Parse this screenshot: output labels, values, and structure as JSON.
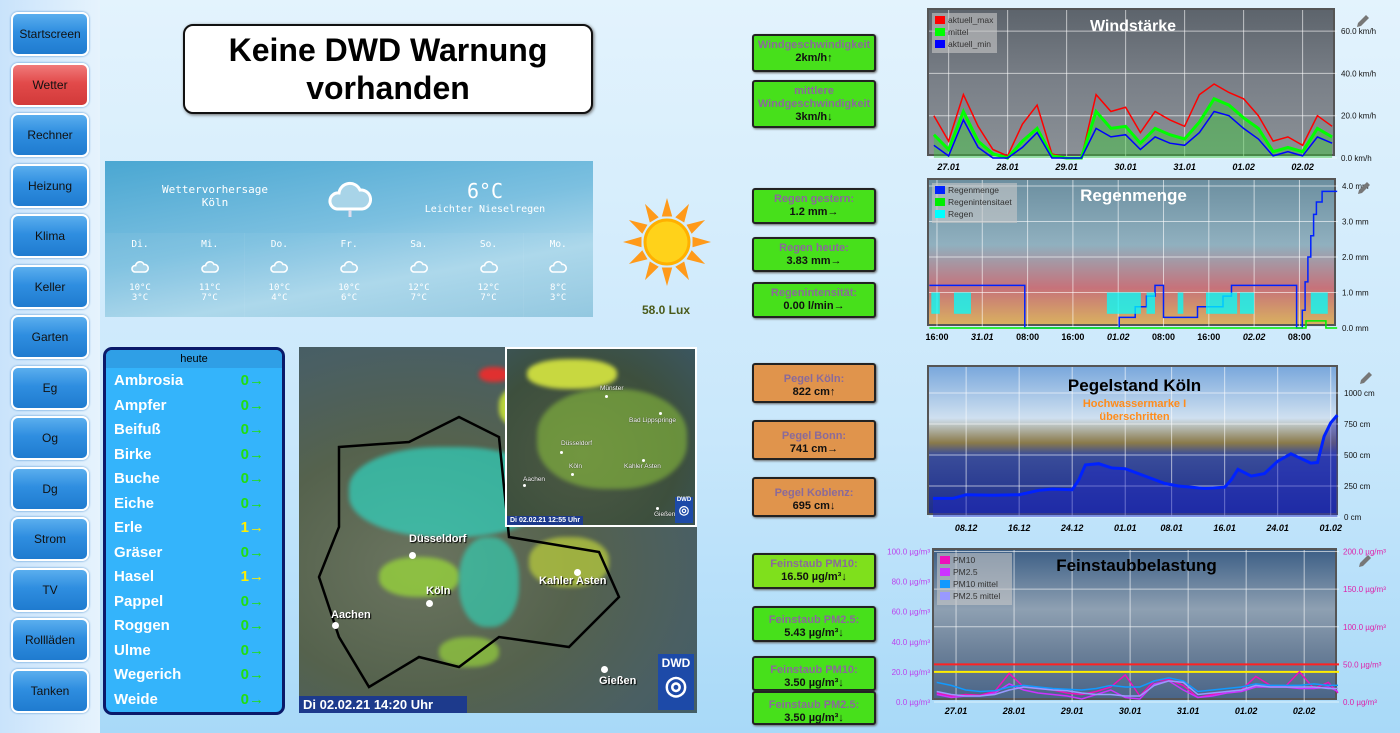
{
  "nav": {
    "items": [
      {
        "label": "Startscreen"
      },
      {
        "label": "Wetter",
        "active": true
      },
      {
        "label": "Rechner"
      },
      {
        "label": "Heizung"
      },
      {
        "label": "Klima"
      },
      {
        "label": "Keller"
      },
      {
        "label": "Garten"
      },
      {
        "label": "Eg"
      },
      {
        "label": "Og"
      },
      {
        "label": "Dg"
      },
      {
        "label": "Strom"
      },
      {
        "label": "TV"
      },
      {
        "label": "Rollläden"
      },
      {
        "label": "Tanken"
      }
    ]
  },
  "warning": {
    "line1": "Keine DWD Warnung",
    "line2": "vorhanden"
  },
  "forecast": {
    "title": "Wettervorhersage",
    "city": "Köln",
    "temp": "6°C",
    "condition": "Leichter Nieselregen",
    "icon": "cloud-drizzle-icon",
    "days": [
      {
        "name": "Di.",
        "hi": "10°C",
        "lo": "3°C"
      },
      {
        "name": "Mi.",
        "hi": "11°C",
        "lo": "7°C"
      },
      {
        "name": "Do.",
        "hi": "10°C",
        "lo": "4°C"
      },
      {
        "name": "Fr.",
        "hi": "10°C",
        "lo": "6°C"
      },
      {
        "name": "Sa.",
        "hi": "12°C",
        "lo": "7°C"
      },
      {
        "name": "So.",
        "hi": "12°C",
        "lo": "7°C"
      },
      {
        "name": "Mo.",
        "hi": "8°C",
        "lo": "3°C"
      }
    ]
  },
  "sun": {
    "icon": "sun-icon",
    "lux": "58.0 Lux"
  },
  "values": {
    "wind": [
      {
        "label": "Windgeschwindigkeit",
        "value": "2km/h",
        "trend": "↑"
      },
      {
        "label": "mittlere Windgeschwindigkeit",
        "value": "3km/h",
        "trend": "↓"
      }
    ],
    "rain": [
      {
        "label": "Regen gestern:",
        "value": "1.2 mm",
        "trend": "→"
      },
      {
        "label": "Regen heute:",
        "value": "3.83 mm",
        "trend": "→"
      },
      {
        "label": "Regenintensität:",
        "value": "0.00 l/min",
        "trend": "→"
      }
    ],
    "level": [
      {
        "label": "Pegel Köln:",
        "value": "822 cm",
        "trend": "↑"
      },
      {
        "label": "Pegel Bonn:",
        "value": "741 cm",
        "trend": "→"
      },
      {
        "label": "Pegel Koblenz:",
        "value": "695 cm",
        "trend": "↓"
      }
    ],
    "dust": [
      {
        "label": "Feinstaub PM10:",
        "value": "16.50 µg/m³",
        "trend": "↓"
      },
      {
        "label": "Feinstaub PM2.5:",
        "value": "5.43 µg/m³",
        "trend": "↓"
      },
      {
        "label": "Feinstaub PM10:",
        "value": "3.50 µg/m³",
        "trend": "↓"
      },
      {
        "label": "Feinstaub PM2.5:",
        "value": "3.50 µg/m³",
        "trend": "↓"
      }
    ],
    "colors": {
      "green": "#47e01b",
      "orange": "#e0944c",
      "lime": "#7fe01c"
    }
  },
  "pollen": {
    "header": "heute",
    "items": [
      {
        "name": "Ambrosia",
        "value": "0",
        "trend": "→"
      },
      {
        "name": "Ampfer",
        "value": "0",
        "trend": "→"
      },
      {
        "name": "Beifuß",
        "value": "0",
        "trend": "→"
      },
      {
        "name": "Birke",
        "value": "0",
        "trend": "→"
      },
      {
        "name": "Buche",
        "value": "0",
        "trend": "→"
      },
      {
        "name": "Eiche",
        "value": "0",
        "trend": "→"
      },
      {
        "name": "Erle",
        "value": "1",
        "trend": "→"
      },
      {
        "name": "Gräser",
        "value": "0",
        "trend": "→"
      },
      {
        "name": "Hasel",
        "value": "1",
        "trend": "→"
      },
      {
        "name": "Pappel",
        "value": "0",
        "trend": "→"
      },
      {
        "name": "Roggen",
        "value": "0",
        "trend": "→"
      },
      {
        "name": "Ulme",
        "value": "0",
        "trend": "→"
      },
      {
        "name": "Wegerich",
        "value": "0",
        "trend": "→"
      },
      {
        "name": "Weide",
        "value": "0",
        "trend": "→"
      }
    ],
    "colors": {
      "0": "#22dd11",
      "1": "#ffee00"
    }
  },
  "radar": {
    "timestamp": "Di 02.02.21  14:20 Uhr",
    "inset_timestamp": "Di 02.02.21  12:55 Uhr",
    "logo": "DWD",
    "cities": [
      "Düsseldorf",
      "Köln",
      "Aachen",
      "Kahler Asten",
      "Gießen"
    ],
    "inset_cities": [
      "Münster",
      "Bad Lippspringe",
      "Düsseldorf",
      "Köln",
      "Aachen",
      "Kahler Asten",
      "Gießen"
    ]
  },
  "chart_data": [
    {
      "type": "area",
      "title": "Windstärke",
      "ylim": [
        0,
        70
      ],
      "y_unit": "km/h",
      "y_ticks": [
        "0.0 km/h",
        "20.0 km/h",
        "40.0 km/h",
        "60.0 km/h"
      ],
      "y_tick_values": [
        0,
        20,
        40,
        60
      ],
      "x_ticks": [
        "27.01",
        "28.01",
        "29.01",
        "30.01",
        "31.01",
        "01.02",
        "02.02"
      ],
      "x": [
        "26.01 18:00",
        "27.01 00:00",
        "27.01 06:00",
        "27.01 12:00",
        "27.01 18:00",
        "28.01 00:00",
        "28.01 06:00",
        "28.01 12:00",
        "28.01 18:00",
        "29.01 00:00",
        "29.01 06:00",
        "29.01 12:00",
        "29.01 18:00",
        "30.01 00:00",
        "30.01 06:00",
        "30.01 12:00",
        "30.01 18:00",
        "31.01 00:00",
        "31.01 06:00",
        "31.01 12:00",
        "31.01 18:00",
        "01.02 00:00",
        "01.02 06:00",
        "01.02 12:00",
        "01.02 18:00",
        "02.02 00:00",
        "02.02 06:00",
        "02.02 12:00"
      ],
      "series": [
        {
          "name": "aktuell_max",
          "color": "#ff0000",
          "values": [
            20,
            8,
            30,
            15,
            4,
            1,
            16,
            25,
            2,
            0,
            0,
            30,
            22,
            24,
            12,
            22,
            18,
            15,
            30,
            35,
            31,
            28,
            20,
            8,
            10,
            6,
            20,
            15
          ]
        },
        {
          "name": "mittel",
          "color": "#00ff00",
          "values": [
            11,
            4,
            22,
            8,
            2,
            0,
            8,
            14,
            1,
            0,
            0,
            22,
            14,
            15,
            7,
            14,
            11,
            9,
            17,
            28,
            25,
            19,
            14,
            3,
            5,
            3,
            14,
            10
          ]
        },
        {
          "name": "aktuell_min",
          "color": "#0000ff",
          "values": [
            6,
            1,
            18,
            5,
            0,
            0,
            5,
            12,
            0,
            0,
            0,
            14,
            10,
            11,
            4,
            10,
            7,
            6,
            12,
            22,
            20,
            14,
            9,
            1,
            3,
            1,
            10,
            7
          ]
        }
      ]
    },
    {
      "type": "line",
      "title": "Regenmenge",
      "ylim": [
        0,
        4.17
      ],
      "y_unit": "mm",
      "y_ticks": [
        "0.0 mm",
        "1.0 mm",
        "2.0 mm",
        "3.0 mm",
        "4.0 mm"
      ],
      "y_tick_values": [
        0,
        1,
        2,
        3,
        4
      ],
      "x_ticks": [
        {
          "label": "16:00",
          "at": "30.01 16:00"
        },
        {
          "label": "31.01",
          "at": "31.01 00:00"
        },
        {
          "label": "08:00",
          "at": "31.01 08:00"
        },
        {
          "label": "16:00",
          "at": "31.01 16:00"
        },
        {
          "label": "01.02",
          "at": "01.02 00:00"
        },
        {
          "label": "08:00",
          "at": "01.02 08:00"
        },
        {
          "label": "16:00",
          "at": "01.02 16:00"
        },
        {
          "label": "02.02",
          "at": "02.02 00:00"
        },
        {
          "label": "08:00",
          "at": "02.02 08:00"
        }
      ],
      "series": [
        {
          "name": "Regenmenge",
          "color": "#0022ff",
          "step": true,
          "x": [
            "30.01 14:40",
            "31.01 07:20",
            "31.01 07:30",
            "01.02 00:10",
            "01.02 03:00",
            "01.02 05:00",
            "01.02 06:30",
            "01.02 08:00",
            "01.02 14:00",
            "01.02 18:30",
            "01.02 20:00",
            "02.02 07:30",
            "02.02 08:30",
            "02.02 09:00",
            "02.02 09:30",
            "02.02 10:00",
            "02.02 10:30",
            "02.02 11:00",
            "02.02 12:00",
            "02.02 14:40"
          ],
          "values": [
            1.2,
            1.2,
            0,
            0.3,
            0.6,
            0.9,
            1.2,
            0.3,
            0.6,
            0.9,
            1.2,
            0,
            0.5,
            1.3,
            2.0,
            2.6,
            3.2,
            3.55,
            3.85,
            3.85
          ]
        },
        {
          "name": "Regenintensitaet",
          "color": "#00ee00",
          "step": true,
          "x": [
            "30.01 14:40",
            "02.02 09:00",
            "02.02 09:10",
            "02.02 12:30",
            "02.02 12:40",
            "02.02 14:40"
          ],
          "values": [
            0,
            0,
            0.2,
            0.2,
            0,
            0
          ]
        },
        {
          "name": "Regen",
          "color": "#00ffff",
          "periods": [
            [
              "30.01 15:00",
              "30.01 16:30"
            ],
            [
              "30.01 19:00",
              "30.01 22:00"
            ],
            [
              "31.01 22:00",
              "01.02 04:00"
            ],
            [
              "01.02 05:00",
              "01.02 06:30"
            ],
            [
              "01.02 10:30",
              "01.02 11:30"
            ],
            [
              "01.02 15:30",
              "01.02 21:00"
            ],
            [
              "01.02 21:30",
              "02.02 00:00"
            ],
            [
              "02.02 10:00",
              "02.02 13:00"
            ]
          ]
        }
      ]
    },
    {
      "type": "area",
      "title": "Pegelstand Köln",
      "subtitle": "Hochwassermarke I überschritten",
      "ylim": [
        0,
        1210
      ],
      "y_unit": "cm",
      "y_ticks": [
        "0 cm",
        "250 cm",
        "500 cm",
        "750 cm",
        "1000 cm"
      ],
      "y_tick_values": [
        0,
        250,
        500,
        750,
        1000
      ],
      "x_ticks": [
        "08.12",
        "16.12",
        "24.12",
        "01.01",
        "08.01",
        "16.01",
        "24.01",
        "01.02"
      ],
      "x": [
        "03.12",
        "06.12",
        "08.12",
        "12.12",
        "16.12",
        "19.12",
        "21.12",
        "24.12",
        "25.12",
        "26.12",
        "28.12",
        "30.12",
        "01.01",
        "04.01",
        "07.01",
        "09.01",
        "13.01",
        "16.01",
        "17.01",
        "18.01",
        "20.01",
        "22.01",
        "24.01",
        "26.01",
        "28.01",
        "29.01",
        "30.01",
        "31.01",
        "01.02",
        "02.02"
      ],
      "series": [
        {
          "name": "Pegel Köln",
          "color": "#0022ff",
          "values": [
            150,
            150,
            180,
            175,
            180,
            215,
            225,
            220,
            300,
            420,
            430,
            395,
            390,
            330,
            270,
            250,
            230,
            240,
            300,
            385,
            330,
            350,
            450,
            510,
            460,
            435,
            440,
            650,
            760,
            822
          ]
        }
      ]
    },
    {
      "type": "line",
      "title": "Feinstaubbelastung",
      "ylim_left": [
        0,
        101
      ],
      "ylim_right": [
        0,
        202
      ],
      "y_unit": "µg/m³",
      "y_ticks_left": [
        "0.0 µg/m³",
        "20.0 µg/m³",
        "40.0 µg/m³",
        "60.0 µg/m³",
        "80.0 µg/m³",
        "100.0 µg/m³"
      ],
      "y_tick_values_left": [
        0,
        20,
        40,
        60,
        80,
        100
      ],
      "y_ticks_right": [
        "0.0 µg/m³",
        "50.0 µg/m³",
        "100.0 µg/m³",
        "150.0 µg/m³",
        "200.0 µg/m³"
      ],
      "y_tick_values_right": [
        0,
        50,
        100,
        150,
        200
      ],
      "x_ticks": [
        "27.01",
        "28.01",
        "29.01",
        "30.01",
        "31.01",
        "01.02",
        "02.02"
      ],
      "thresholds": [
        {
          "value": 50,
          "axis": "right",
          "color": "#ff2222"
        },
        {
          "value": 40,
          "axis": "right",
          "color": "#ffee00"
        }
      ],
      "x": [
        "26.01 16:00",
        "26.01 22:00",
        "27.01 04:00",
        "27.01 10:00",
        "27.01 16:00",
        "27.01 22:00",
        "28.01 04:00",
        "28.01 10:00",
        "28.01 16:00",
        "28.01 22:00",
        "29.01 04:00",
        "29.01 10:00",
        "29.01 16:00",
        "29.01 22:00",
        "30.01 04:00",
        "30.01 10:00",
        "30.01 16:00",
        "30.01 22:00",
        "31.01 04:00",
        "31.01 10:00",
        "31.01 16:00",
        "31.01 22:00",
        "01.02 04:00",
        "01.02 10:00",
        "01.02 16:00",
        "01.02 22:00",
        "02.02 04:00",
        "02.02 10:00",
        "02.02 14:00"
      ],
      "series": [
        {
          "name": "PM10",
          "axis": "right",
          "color": "#ee11bb",
          "values": [
            12,
            8,
            10,
            9,
            14,
            38,
            20,
            18,
            16,
            12,
            10,
            14,
            20,
            36,
            8,
            28,
            30,
            22,
            6,
            10,
            14,
            16,
            34,
            22,
            20,
            40,
            18,
            26,
            12
          ]
        },
        {
          "name": "PM2.5",
          "axis": "left",
          "color": "#cc33ff",
          "values": [
            5,
            3,
            4,
            4,
            6,
            12,
            8,
            6,
            5,
            4,
            2,
            5,
            8,
            3,
            2,
            12,
            14,
            8,
            3,
            4,
            6,
            7,
            10,
            10,
            10,
            9,
            9,
            10,
            7
          ]
        },
        {
          "name": "PM10 mittel",
          "axis": "right",
          "color": "#1199ff",
          "values": [
            26,
            22,
            16,
            14,
            15,
            20,
            22,
            20,
            18,
            17,
            16,
            18,
            22,
            20,
            20,
            28,
            32,
            28,
            14,
            16,
            18,
            20,
            24,
            22,
            22,
            22,
            24,
            22,
            22
          ]
        },
        {
          "name": "PM2.5 mittel",
          "axis": "right",
          "color": "#9999ff",
          "values": [
            14,
            10,
            8,
            8,
            10,
            16,
            20,
            18,
            16,
            15,
            12,
            10,
            10,
            8,
            8,
            22,
            28,
            26,
            10,
            12,
            14,
            16,
            22,
            20,
            20,
            20,
            20,
            18,
            18
          ]
        }
      ]
    }
  ]
}
